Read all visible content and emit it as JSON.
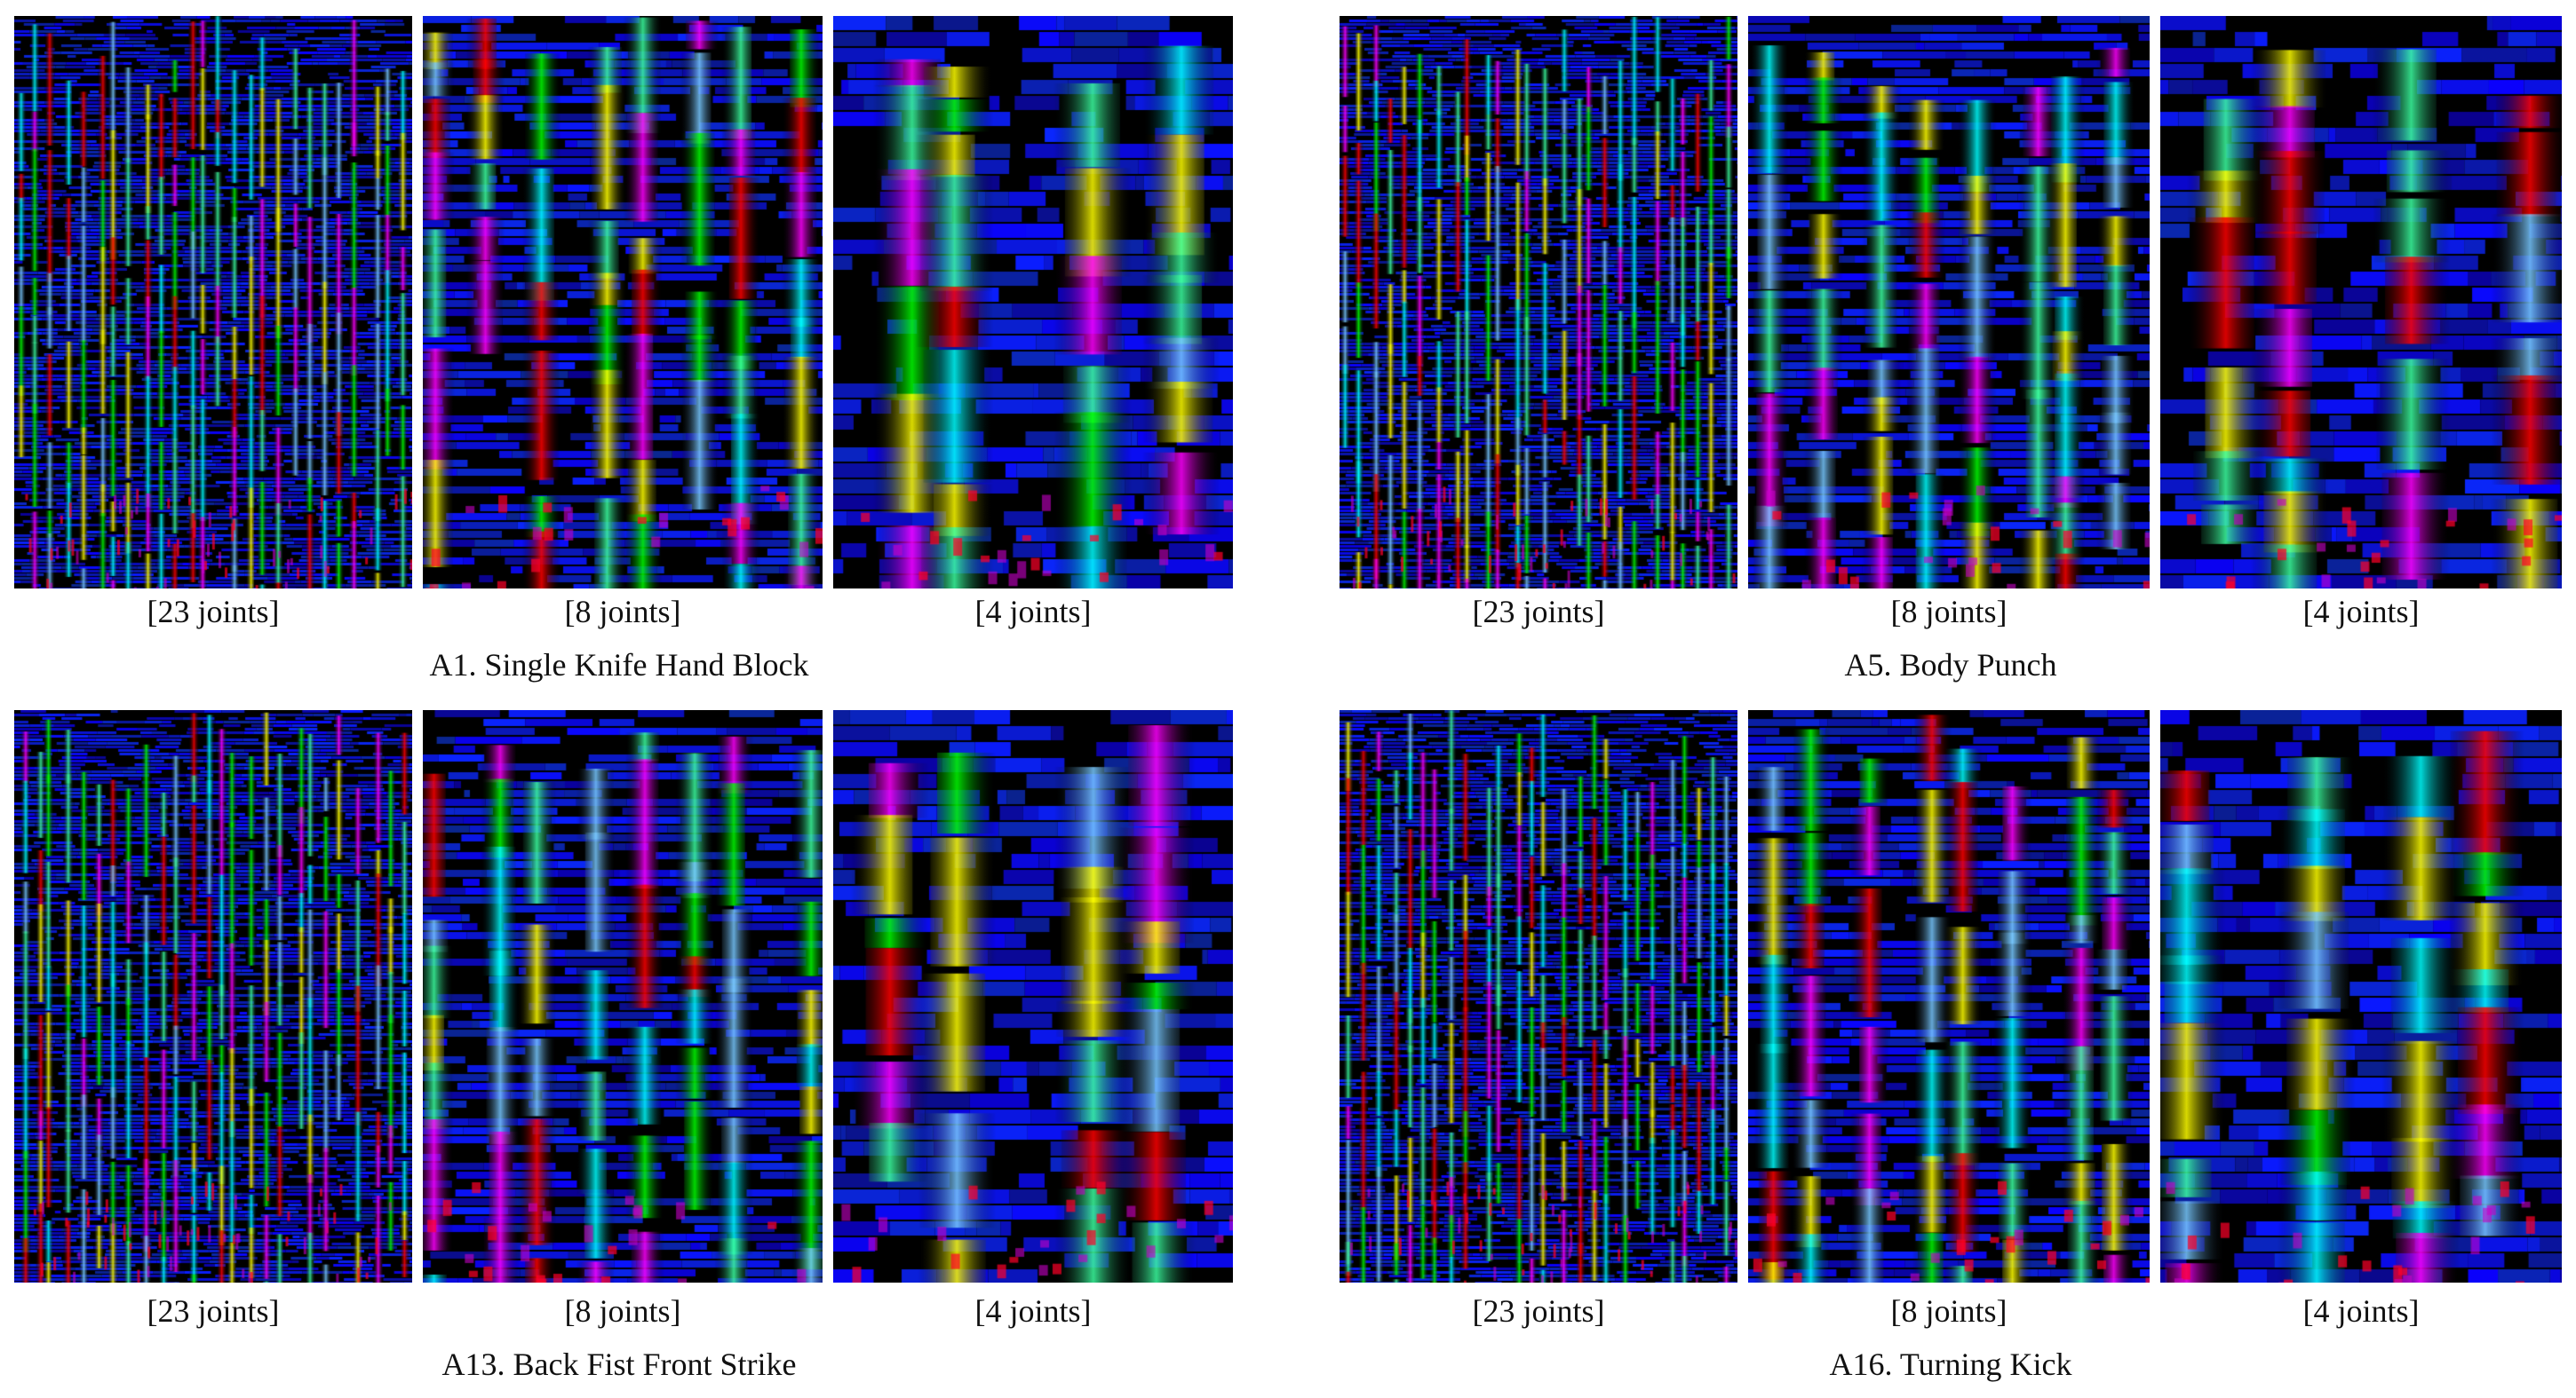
{
  "groups": [
    {
      "caption": "A1. Single Knife Hand Block",
      "panels": [
        {
          "label": "[23 joints]",
          "joints": 23
        },
        {
          "label": "[8 joints]",
          "joints": 8
        },
        {
          "label": "[4 joints]",
          "joints": 4
        }
      ]
    },
    {
      "caption": "A5. Body Punch",
      "panels": [
        {
          "label": "[23 joints]",
          "joints": 23
        },
        {
          "label": "[8 joints]",
          "joints": 8
        },
        {
          "label": "[4 joints]",
          "joints": 4
        }
      ]
    },
    {
      "caption": "A13. Back Fist Front Strike",
      "panels": [
        {
          "label": "[23 joints]",
          "joints": 23
        },
        {
          "label": "[8 joints]",
          "joints": 8
        },
        {
          "label": "[4 joints]",
          "joints": 4
        }
      ]
    },
    {
      "caption": "A16. Turning Kick",
      "panels": [
        {
          "label": "[23 joints]",
          "joints": 23
        },
        {
          "label": "[8 joints]",
          "joints": 8
        },
        {
          "label": "[4 joints]",
          "joints": 4
        }
      ]
    }
  ],
  "colors": {
    "background": "#000000",
    "dominant": "#1a1aff",
    "accents": [
      "#00ffff",
      "#00ff00",
      "#ff0000",
      "#ffff00",
      "#ff00ff"
    ]
  }
}
